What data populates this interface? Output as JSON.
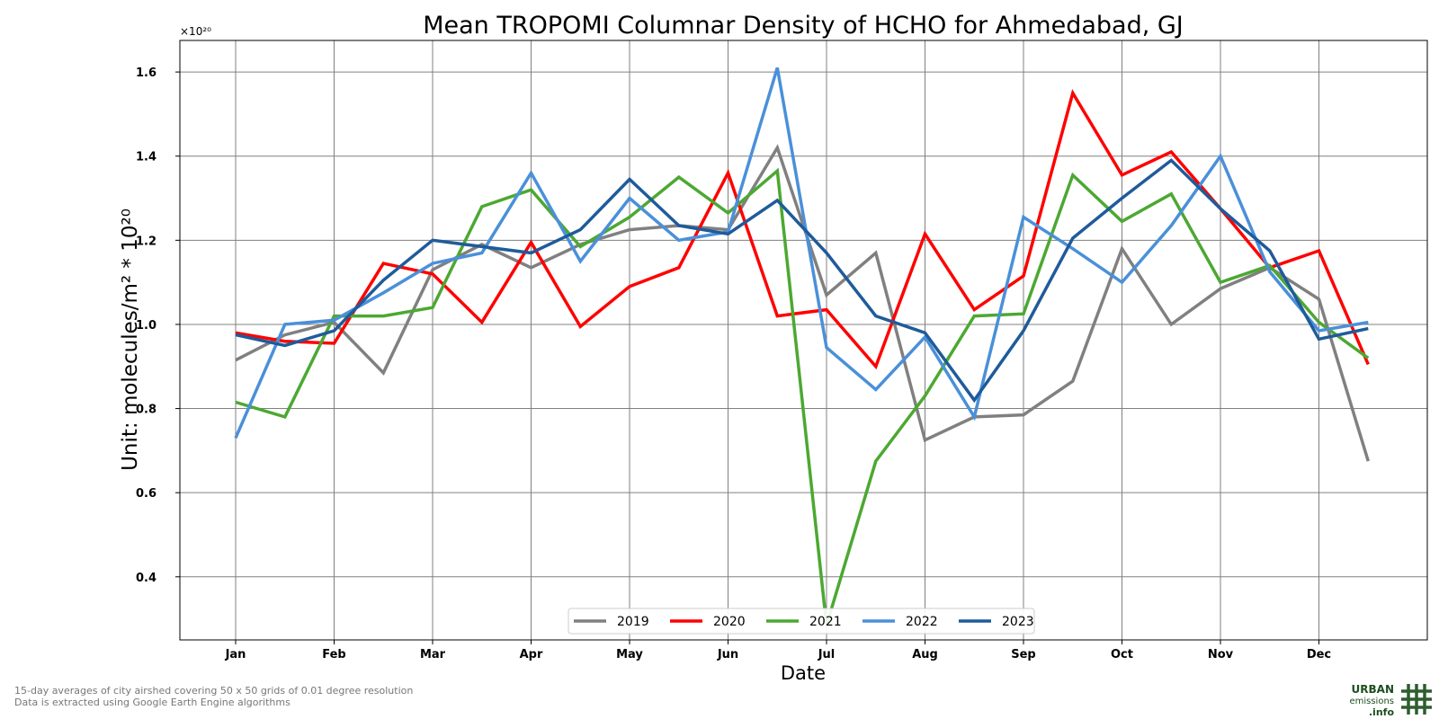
{
  "chart_data": {
    "type": "line",
    "title": "Mean TROPOMI Columnar Density of HCHO for Ahmedabad, GJ",
    "xlabel": "Date",
    "ylabel": "Unit: molecules/m² * 10²⁰",
    "yscale_label": "×10²⁰",
    "x_ticks": [
      "Jan",
      "Feb",
      "Mar",
      "Apr",
      "May",
      "Jun",
      "Jul",
      "Aug",
      "Sep",
      "Oct",
      "Nov",
      "Dec"
    ],
    "y_ticks": [
      "0.4",
      "0.6",
      "0.8",
      "1.0",
      "1.2",
      "1.4",
      "1.6"
    ],
    "ylim": [
      0.25,
      1.675
    ],
    "grid": true,
    "legend_position": "bottom-center",
    "x": [
      0,
      0.5,
      1,
      1.5,
      2,
      2.5,
      3,
      3.5,
      4,
      4.5,
      5,
      5.5,
      6,
      6.5,
      7,
      7.5,
      8,
      8.5,
      9,
      9.5,
      10,
      10.5,
      11,
      11.5
    ],
    "series": [
      {
        "name": "2019",
        "color": "#808080",
        "values": [
          0.915,
          0.975,
          1.005,
          0.885,
          1.13,
          1.19,
          1.135,
          1.19,
          1.225,
          1.235,
          1.225,
          1.42,
          1.07,
          1.17,
          0.725,
          0.78,
          0.785,
          0.865,
          1.18,
          1.0,
          1.085,
          1.135,
          1.06,
          0.675
        ]
      },
      {
        "name": "2020",
        "color": "#ff0000",
        "values": [
          0.98,
          0.96,
          0.955,
          1.145,
          1.12,
          1.005,
          1.195,
          0.995,
          1.09,
          1.135,
          1.36,
          1.02,
          1.035,
          0.9,
          1.215,
          1.035,
          1.115,
          1.55,
          1.355,
          1.41,
          1.275,
          1.135,
          1.175,
          0.905
        ]
      },
      {
        "name": "2021",
        "color": "#4ca832",
        "values": [
          0.815,
          0.78,
          1.02,
          1.02,
          1.04,
          1.28,
          1.32,
          1.185,
          1.255,
          1.35,
          1.265,
          1.365,
          0.285,
          0.675,
          0.83,
          1.02,
          1.025,
          1.355,
          1.245,
          1.31,
          1.1,
          1.14,
          1.005,
          0.92
        ]
      },
      {
        "name": "2022",
        "color": "#4a90d9",
        "values": [
          0.73,
          1.0,
          1.01,
          1.075,
          1.145,
          1.17,
          1.36,
          1.15,
          1.3,
          1.2,
          1.22,
          1.61,
          0.945,
          0.845,
          0.97,
          0.78,
          1.255,
          1.18,
          1.1,
          1.235,
          1.4,
          1.125,
          0.985,
          1.005
        ]
      },
      {
        "name": "2023",
        "color": "#1f5b9a",
        "values": [
          0.975,
          0.95,
          0.985,
          1.105,
          1.2,
          1.185,
          1.17,
          1.225,
          1.345,
          1.235,
          1.215,
          1.295,
          1.17,
          1.02,
          0.98,
          0.82,
          0.985,
          1.205,
          1.3,
          1.39,
          1.275,
          1.175,
          0.965,
          0.99
        ]
      }
    ]
  },
  "footnotes": [
    "15-day averages of city airshed covering 50 x 50 grids of 0.01 degree resolution",
    "Data is extracted using Google Earth Engine algorithms"
  ],
  "logo": {
    "line1": "URBAN",
    "line2": "emissions",
    "line3": ".info",
    "colors": {
      "dark_green": "#1e4d1e",
      "hash": "#2e5e2e"
    }
  }
}
